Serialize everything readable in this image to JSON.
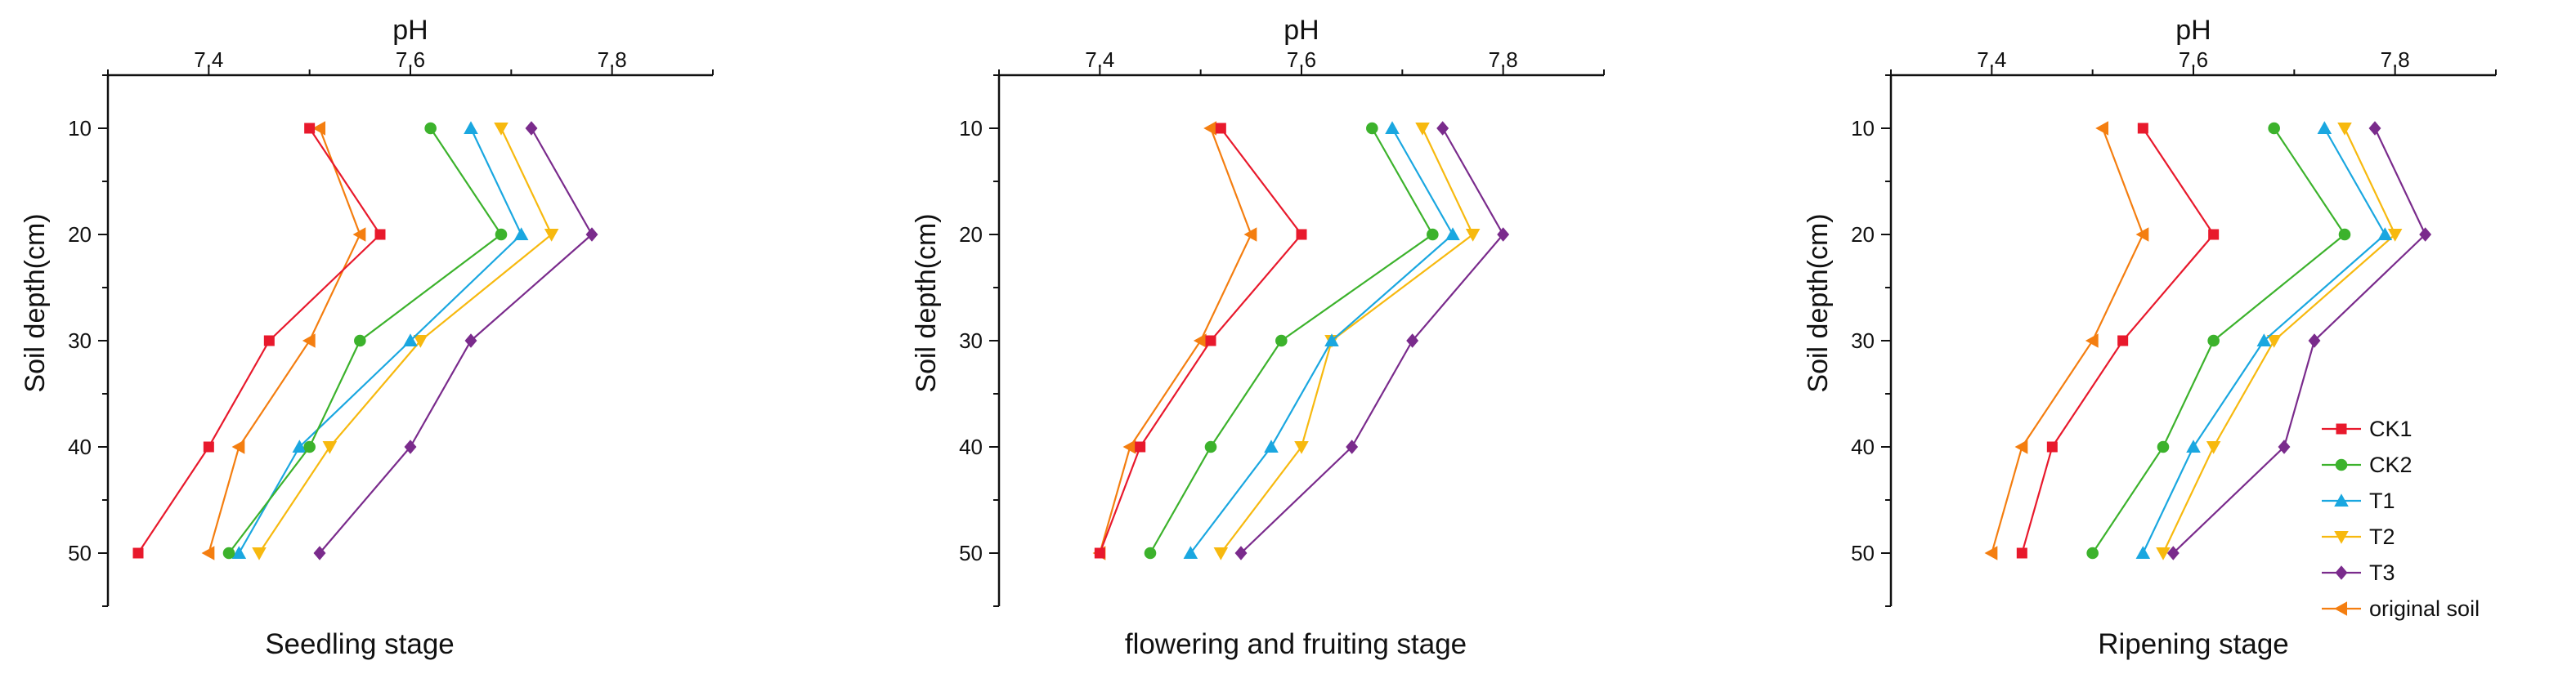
{
  "series_styles": [
    {
      "name": "CK1",
      "color": "#e8192c",
      "marker": "square"
    },
    {
      "name": "CK2",
      "color": "#3cb22c",
      "marker": "circle"
    },
    {
      "name": "T1",
      "color": "#1aa7e0",
      "marker": "triangle-up"
    },
    {
      "name": "T2",
      "color": "#f7b90f",
      "marker": "triangle-down"
    },
    {
      "name": "T3",
      "color": "#7a2b8c",
      "marker": "diamond"
    },
    {
      "name": "original soil",
      "color": "#f47e10",
      "marker": "triangle-left"
    }
  ],
  "chart_data": [
    {
      "type": "line",
      "title": "Seedling stage",
      "xlabel": "pH",
      "ylabel": "Soil depth(cm)",
      "xlim": [
        7.3,
        7.9
      ],
      "ylim": [
        5,
        55
      ],
      "x_ticks": [
        7.4,
        7.6,
        7.8
      ],
      "y_ticks": [
        10,
        20,
        30,
        40,
        50
      ],
      "depths": [
        10,
        20,
        30,
        40,
        50
      ],
      "series": [
        {
          "name": "CK1",
          "values": [
            7.5,
            7.57,
            7.46,
            7.4,
            7.33
          ]
        },
        {
          "name": "CK2",
          "values": [
            7.62,
            7.69,
            7.55,
            7.5,
            7.42
          ]
        },
        {
          "name": "T1",
          "values": [
            7.66,
            7.71,
            7.6,
            7.49,
            7.43
          ]
        },
        {
          "name": "T2",
          "values": [
            7.69,
            7.74,
            7.61,
            7.52,
            7.45
          ]
        },
        {
          "name": "T3",
          "values": [
            7.72,
            7.78,
            7.66,
            7.6,
            7.51
          ]
        },
        {
          "name": "original soil",
          "values": [
            7.51,
            7.55,
            7.5,
            7.43,
            7.4
          ]
        }
      ]
    },
    {
      "type": "line",
      "title": "flowering and fruiting stage",
      "xlabel": "pH",
      "ylabel": "Soil depth(cm)",
      "xlim": [
        7.3,
        7.9
      ],
      "ylim": [
        5,
        55
      ],
      "x_ticks": [
        7.4,
        7.6,
        7.8
      ],
      "y_ticks": [
        10,
        20,
        30,
        40,
        50
      ],
      "depths": [
        10,
        20,
        30,
        40,
        50
      ],
      "series": [
        {
          "name": "CK1",
          "values": [
            7.52,
            7.6,
            7.51,
            7.44,
            7.4
          ]
        },
        {
          "name": "CK2",
          "values": [
            7.67,
            7.73,
            7.58,
            7.51,
            7.45
          ]
        },
        {
          "name": "T1",
          "values": [
            7.69,
            7.75,
            7.63,
            7.57,
            7.49
          ]
        },
        {
          "name": "T2",
          "values": [
            7.72,
            7.77,
            7.63,
            7.6,
            7.52
          ]
        },
        {
          "name": "T3",
          "values": [
            7.74,
            7.8,
            7.71,
            7.65,
            7.54
          ]
        },
        {
          "name": "original soil",
          "values": [
            7.51,
            7.55,
            7.5,
            7.43,
            7.4
          ]
        }
      ]
    },
    {
      "type": "line",
      "title": "Ripening stage",
      "xlabel": "pH",
      "ylabel": "Soil depth(cm)",
      "xlim": [
        7.3,
        7.9
      ],
      "ylim": [
        5,
        55
      ],
      "x_ticks": [
        7.4,
        7.6,
        7.8
      ],
      "y_ticks": [
        10,
        20,
        30,
        40,
        50
      ],
      "depths": [
        10,
        20,
        30,
        40,
        50
      ],
      "legend": "bottom-right",
      "series": [
        {
          "name": "CK1",
          "values": [
            7.55,
            7.62,
            7.53,
            7.46,
            7.43
          ]
        },
        {
          "name": "CK2",
          "values": [
            7.68,
            7.75,
            7.62,
            7.57,
            7.5
          ]
        },
        {
          "name": "T1",
          "values": [
            7.73,
            7.79,
            7.67,
            7.6,
            7.55
          ]
        },
        {
          "name": "T2",
          "values": [
            7.75,
            7.8,
            7.68,
            7.62,
            7.57
          ]
        },
        {
          "name": "T3",
          "values": [
            7.78,
            7.83,
            7.72,
            7.69,
            7.58
          ]
        },
        {
          "name": "original soil",
          "values": [
            7.51,
            7.55,
            7.5,
            7.43,
            7.4
          ]
        }
      ]
    }
  ]
}
